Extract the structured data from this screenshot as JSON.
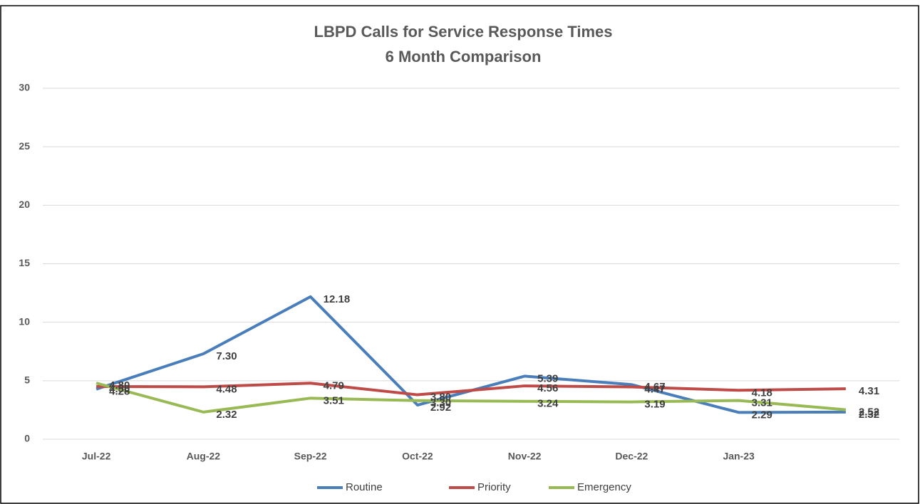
{
  "chart_data": {
    "type": "line",
    "title": [
      "LBPD Calls for Service Response Times",
      "6 Month Comparison"
    ],
    "categories": [
      "Jul-22",
      "Aug-22",
      "Sep-22",
      "Oct-22",
      "Nov-22",
      "Dec-22",
      "Jan-23",
      null
    ],
    "series": [
      {
        "name": "Routine",
        "color": "#4a7ebb",
        "values": [
          4.28,
          7.3,
          12.18,
          2.92,
          5.39,
          4.67,
          2.29,
          2.32
        ],
        "value_labels": [
          "4.28",
          "7.30",
          "12.18",
          "2.92",
          "5.39",
          "4.67",
          "2.29",
          "2.32"
        ]
      },
      {
        "name": "Priority",
        "color": "#be4b48",
        "values": [
          4.5,
          4.48,
          4.79,
          3.8,
          4.56,
          4.47,
          4.18,
          4.31
        ],
        "value_labels": [
          "4.50",
          "4.48",
          "4.79",
          "3.80",
          "4.56",
          "4.47",
          "4.18",
          "4.31"
        ]
      },
      {
        "name": "Emergency",
        "color": "#98b954",
        "values": [
          4.8,
          2.32,
          3.51,
          3.3,
          3.24,
          3.19,
          3.31,
          2.52
        ],
        "value_labels": [
          "4.80",
          "2.32",
          "3.51",
          "3.30",
          "3.24",
          "3.19",
          "3.31",
          "2.52"
        ]
      }
    ],
    "ylim": [
      0,
      30
    ],
    "yticks": [
      0,
      5,
      10,
      15,
      20,
      25,
      30
    ],
    "grid": true,
    "legend": "bottom"
  }
}
